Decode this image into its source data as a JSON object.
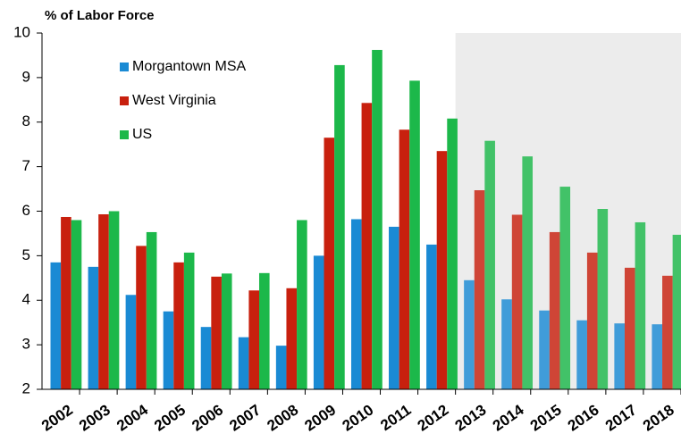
{
  "chart_data": {
    "type": "bar",
    "y_label": "% of Labor Force",
    "categories": [
      "2002",
      "2003",
      "2004",
      "2005",
      "2006",
      "2007",
      "2008",
      "2009",
      "2010",
      "2011",
      "2012",
      "2013",
      "2014",
      "2015",
      "2016",
      "2017",
      "2018"
    ],
    "series": [
      {
        "name": "Morgantown MSA",
        "color": "#1a8ad4",
        "values": [
          4.85,
          4.75,
          4.12,
          3.75,
          3.4,
          3.17,
          2.98,
          5.0,
          5.82,
          5.65,
          5.25,
          4.45,
          4.02,
          3.77,
          3.55,
          3.48,
          3.46
        ]
      },
      {
        "name": "West Virginia",
        "color": "#c8200e",
        "values": [
          5.87,
          5.93,
          5.22,
          4.85,
          4.53,
          4.22,
          4.27,
          7.65,
          8.43,
          7.83,
          7.35,
          6.47,
          5.92,
          5.53,
          5.07,
          4.73,
          4.55
        ]
      },
      {
        "name": "US",
        "color": "#1cb84a",
        "values": [
          5.8,
          6.0,
          5.53,
          5.07,
          4.6,
          4.61,
          5.8,
          9.28,
          9.62,
          8.93,
          8.08,
          7.58,
          7.23,
          6.55,
          6.05,
          5.75,
          5.47
        ]
      }
    ],
    "ylim": [
      2,
      10
    ],
    "yticks": [
      2,
      3,
      4,
      5,
      6,
      7,
      8,
      9,
      10
    ],
    "legend": "upper-left",
    "shaded_region": {
      "from": "2013",
      "color": "#ececec"
    }
  }
}
